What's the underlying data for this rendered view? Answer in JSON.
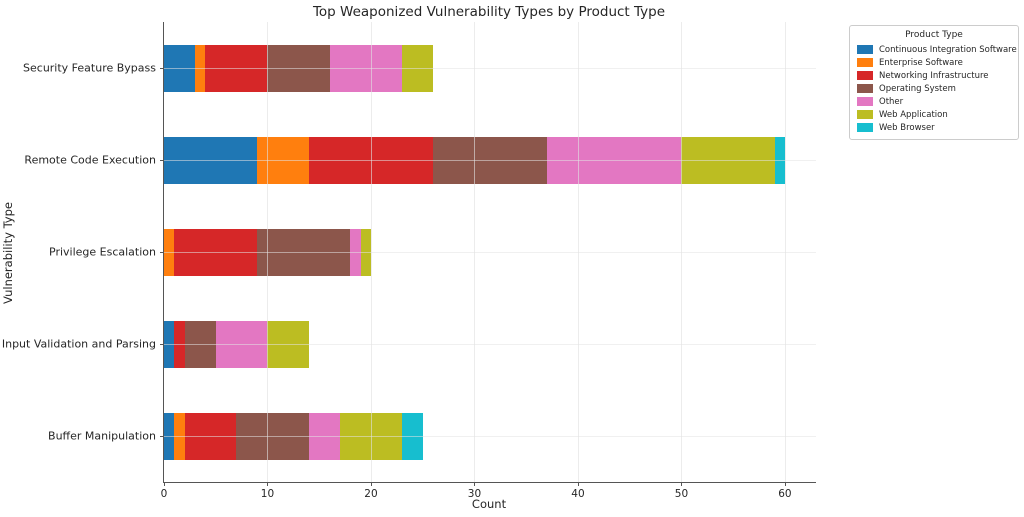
{
  "chart_data": {
    "type": "bar",
    "orientation": "horizontal",
    "stacked": true,
    "title": "Top Weaponized Vulnerability Types by Product Type",
    "xlabel": "Count",
    "ylabel": "Vulnerability Type",
    "xlim": [
      0,
      63
    ],
    "xticks": [
      0,
      10,
      20,
      30,
      40,
      50,
      60
    ],
    "grid": true,
    "legend": {
      "title": "Product Type",
      "position": "upper-right"
    },
    "categories": [
      "Security Feature Bypass",
      "Remote Code Execution",
      "Privilege Escalation",
      "Input Validation and Parsing",
      "Buffer Manipulation"
    ],
    "category_totals": [
      26,
      60,
      20,
      14,
      25
    ],
    "series": [
      {
        "name": "Continuous Integration Software",
        "color": "#1f77b4",
        "values": [
          3,
          9,
          0,
          1,
          1
        ]
      },
      {
        "name": "Enterprise Software",
        "color": "#ff7f0e",
        "values": [
          1,
          5,
          1,
          0,
          1
        ]
      },
      {
        "name": "Networking Infrastructure",
        "color": "#d62728",
        "values": [
          6,
          12,
          8,
          1,
          5
        ]
      },
      {
        "name": "Operating System",
        "color": "#8c564b",
        "values": [
          6,
          11,
          9,
          3,
          7
        ]
      },
      {
        "name": "Other",
        "color": "#e377c2",
        "values": [
          7,
          13,
          1,
          5,
          3
        ]
      },
      {
        "name": "Web Application",
        "color": "#bcbd22",
        "values": [
          3,
          9,
          1,
          4,
          6
        ]
      },
      {
        "name": "Web Browser",
        "color": "#17becf",
        "values": [
          0,
          1,
          0,
          0,
          2
        ]
      }
    ]
  }
}
